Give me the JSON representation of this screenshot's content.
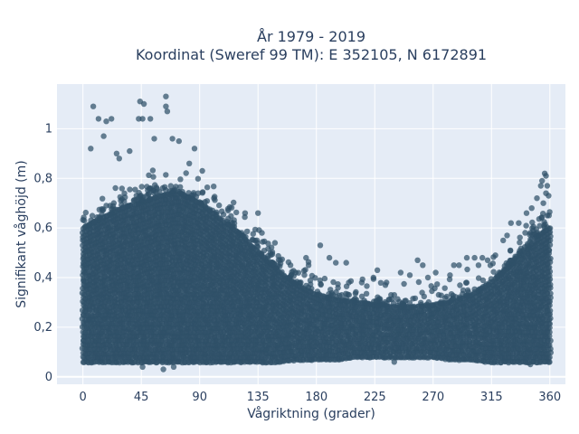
{
  "chart_data": {
    "type": "scatter",
    "title_line1": "År 1979 - 2019",
    "title_line2": "Koordinat (Sweref 99 TM): E 352105, N 6172891",
    "xlabel": "Vågriktning (grader)",
    "ylabel": "Signifikant våghöjd (m)",
    "xlim": [
      -20,
      372
    ],
    "ylim": [
      -0.03,
      1.18
    ],
    "xticks": [
      0,
      45,
      90,
      135,
      180,
      225,
      270,
      315,
      360
    ],
    "xtick_labels": [
      "0",
      "45",
      "90",
      "135",
      "180",
      "225",
      "270",
      "315",
      "360"
    ],
    "yticks": [
      0,
      0.2,
      0.4,
      0.6,
      0.8,
      1
    ],
    "ytick_labels": [
      "0",
      "0,2",
      "0,4",
      "0,6",
      "0,8",
      "1"
    ],
    "grid": true,
    "colors": {
      "plot_bg": "#e5ecf6",
      "grid": "#ffffff",
      "marker": "#2f5068",
      "text": "#2a3f5f"
    },
    "series": [
      {
        "marker": "circle",
        "dense_band": [
          [
            0,
            0.06,
            0.6
          ],
          [
            15,
            0.06,
            0.64
          ],
          [
            30,
            0.06,
            0.68
          ],
          [
            45,
            0.06,
            0.7
          ],
          [
            60,
            0.06,
            0.73
          ],
          [
            75,
            0.06,
            0.74
          ],
          [
            90,
            0.06,
            0.7
          ],
          [
            105,
            0.06,
            0.64
          ],
          [
            120,
            0.06,
            0.58
          ],
          [
            135,
            0.06,
            0.5
          ],
          [
            150,
            0.06,
            0.43
          ],
          [
            165,
            0.07,
            0.37
          ],
          [
            180,
            0.07,
            0.33
          ],
          [
            195,
            0.07,
            0.31
          ],
          [
            210,
            0.08,
            0.3
          ],
          [
            225,
            0.08,
            0.29
          ],
          [
            240,
            0.08,
            0.28
          ],
          [
            255,
            0.08,
            0.28
          ],
          [
            270,
            0.08,
            0.29
          ],
          [
            285,
            0.07,
            0.3
          ],
          [
            300,
            0.07,
            0.33
          ],
          [
            315,
            0.06,
            0.38
          ],
          [
            330,
            0.06,
            0.45
          ],
          [
            345,
            0.06,
            0.55
          ],
          [
            360,
            0.06,
            0.6
          ]
        ],
        "outliers": [
          [
            8,
            1.09
          ],
          [
            12,
            1.04
          ],
          [
            18,
            1.03
          ],
          [
            22,
            1.04
          ],
          [
            28,
            0.88
          ],
          [
            44,
            1.11
          ],
          [
            47,
            1.1
          ],
          [
            43,
            1.04
          ],
          [
            46,
            1.04
          ],
          [
            52,
            1.04
          ],
          [
            55,
            0.96
          ],
          [
            64,
            1.13
          ],
          [
            64,
            1.09
          ],
          [
            65,
            1.07
          ],
          [
            69,
            0.96
          ],
          [
            74,
            0.95
          ],
          [
            86,
            0.92
          ],
          [
            6,
            0.92
          ],
          [
            16,
            0.97
          ],
          [
            26,
            0.9
          ],
          [
            36,
            0.91
          ],
          [
            82,
            0.86
          ],
          [
            92,
            0.83
          ],
          [
            101,
            0.72
          ],
          [
            112,
            0.67
          ],
          [
            125,
            0.66
          ],
          [
            135,
            0.66
          ],
          [
            138,
            0.58
          ],
          [
            148,
            0.54
          ],
          [
            152,
            0.47
          ],
          [
            160,
            0.45
          ],
          [
            164,
            0.42
          ],
          [
            172,
            0.48
          ],
          [
            174,
            0.45
          ],
          [
            183,
            0.53
          ],
          [
            190,
            0.48
          ],
          [
            195,
            0.46
          ],
          [
            203,
            0.46
          ],
          [
            205,
            0.38
          ],
          [
            215,
            0.38
          ],
          [
            224,
            0.4
          ],
          [
            227,
            0.43
          ],
          [
            234,
            0.38
          ],
          [
            240,
            0.33
          ],
          [
            245,
            0.42
          ],
          [
            252,
            0.41
          ],
          [
            258,
            0.47
          ],
          [
            262,
            0.45
          ],
          [
            266,
            0.4
          ],
          [
            272,
            0.42
          ],
          [
            283,
            0.41
          ],
          [
            286,
            0.45
          ],
          [
            290,
            0.45
          ],
          [
            296,
            0.48
          ],
          [
            302,
            0.48
          ],
          [
            305,
            0.45
          ],
          [
            308,
            0.48
          ],
          [
            312,
            0.47
          ],
          [
            318,
            0.49
          ],
          [
            324,
            0.55
          ],
          [
            327,
            0.57
          ],
          [
            330,
            0.62
          ],
          [
            336,
            0.62
          ],
          [
            342,
            0.66
          ],
          [
            346,
            0.68
          ],
          [
            350,
            0.72
          ],
          [
            353,
            0.77
          ],
          [
            354,
            0.79
          ],
          [
            356,
            0.82
          ],
          [
            357,
            0.81
          ],
          [
            358,
            0.77
          ],
          [
            357,
            0.74
          ],
          [
            359,
            0.73
          ],
          [
            355,
            0.7
          ],
          [
            358,
            0.65
          ],
          [
            46,
            0.04
          ],
          [
            62,
            0.03
          ],
          [
            70,
            0.04
          ],
          [
            240,
            0.06
          ],
          [
            345,
            0.05
          ]
        ]
      }
    ]
  }
}
